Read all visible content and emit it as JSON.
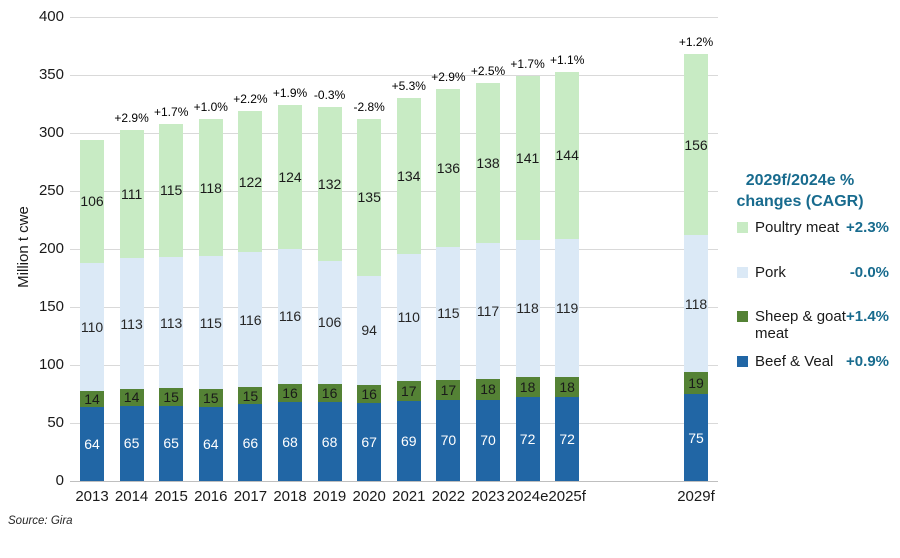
{
  "source": "Source: Gira",
  "colors": {
    "accent_teal": "#186B8E",
    "grid": "#D9D9D9",
    "axis_line": "#BFBFBF",
    "poultry_green": "#C8EBC4",
    "pork_blue": "#DBE9F6",
    "sheep_green": "#548235",
    "beef_blue": "#2166A5"
  },
  "legend": {
    "title": "2029f/2024e %\nchanges (CAGR)",
    "items": [
      {
        "label": "Poultry meat",
        "value": "+2.3%",
        "color": "#C8EBC4"
      },
      {
        "label": "Pork",
        "value": "-0.0%",
        "color": "#DBE9F6"
      },
      {
        "label": "Sheep & goat\nmeat",
        "value": "+1.4%",
        "color": "#548235"
      },
      {
        "label": "Beef & Veal",
        "value": "+0.9%",
        "color": "#2166A5"
      }
    ]
  },
  "chart_data": {
    "type": "bar",
    "stacked": true,
    "title": "",
    "ylabel": "Million t cwe",
    "xlabel": "",
    "ylim": [
      0,
      400
    ],
    "yticks": [
      400,
      350,
      300,
      250,
      200,
      150,
      100,
      50,
      0
    ],
    "grid": true,
    "legend_position": "right",
    "categories": [
      "2013",
      "2014",
      "2015",
      "2016",
      "2017",
      "2018",
      "2019",
      "2020",
      "2021",
      "2022",
      "2023",
      "2024e",
      "2025f",
      "2029f"
    ],
    "growth_labels": [
      "",
      "+2.9%",
      "+1.7%",
      "+1.0%",
      "+2.2%",
      "+1.9%",
      "-0.3%",
      "-2.8%",
      "+5.3%",
      "+2.9%",
      "+2.5%",
      "+1.7%",
      "+1.1%",
      "+1.2%"
    ],
    "series": [
      {
        "name": "Beef & Veal",
        "key": "beef-veal",
        "color": "#2166A5",
        "label_color": "#FFFFFF",
        "values": [
          64,
          65,
          65,
          64,
          66,
          68,
          68,
          67,
          69,
          70,
          70,
          72,
          72,
          75
        ]
      },
      {
        "name": "Sheep & goat meat",
        "key": "sheep-goat-meat",
        "color": "#548235",
        "label_color": "#1A1A1A",
        "values": [
          14,
          14,
          15,
          15,
          15,
          16,
          16,
          16,
          17,
          17,
          18,
          18,
          18,
          19
        ]
      },
      {
        "name": "Pork",
        "key": "pork",
        "color": "#DBE9F6",
        "label_color": "#262626",
        "values": [
          110,
          113,
          113,
          115,
          116,
          116,
          106,
          94,
          110,
          115,
          117,
          118,
          119,
          118
        ]
      },
      {
        "name": "Poultry meat",
        "key": "poultry-meat",
        "color": "#C8EBC4",
        "label_color": "#1A1A1A",
        "values": [
          106,
          111,
          115,
          118,
          122,
          124,
          132,
          135,
          134,
          136,
          138,
          141,
          144,
          156
        ]
      }
    ]
  }
}
